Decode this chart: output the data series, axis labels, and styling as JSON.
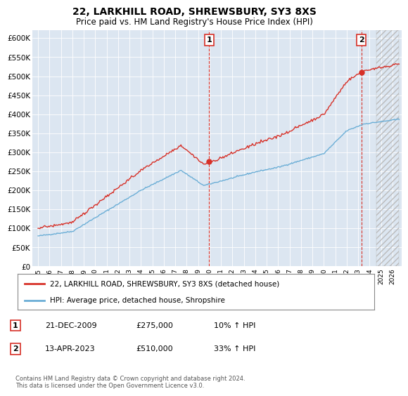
{
  "title": "22, LARKHILL ROAD, SHREWSBURY, SY3 8XS",
  "subtitle": "Price paid vs. HM Land Registry's House Price Index (HPI)",
  "ylim": [
    0,
    620000
  ],
  "yticks": [
    0,
    50000,
    100000,
    150000,
    200000,
    250000,
    300000,
    350000,
    400000,
    450000,
    500000,
    550000,
    600000
  ],
  "bg_color": "#dce6f1",
  "sale1_x": 2009.97,
  "sale1_price": 275000,
  "sale2_x": 2023.28,
  "sale2_price": 510000,
  "legend_line1": "22, LARKHILL ROAD, SHREWSBURY, SY3 8XS (detached house)",
  "legend_line2": "HPI: Average price, detached house, Shropshire",
  "annotation1_date": "21-DEC-2009",
  "annotation1_price": "£275,000",
  "annotation1_hpi": "10% ↑ HPI",
  "annotation2_date": "13-APR-2023",
  "annotation2_price": "£510,000",
  "annotation2_hpi": "33% ↑ HPI",
  "footer": "Contains HM Land Registry data © Crown copyright and database right 2024.\nThis data is licensed under the Open Government Licence v3.0.",
  "hpi_color": "#6baed6",
  "price_color": "#d73027"
}
